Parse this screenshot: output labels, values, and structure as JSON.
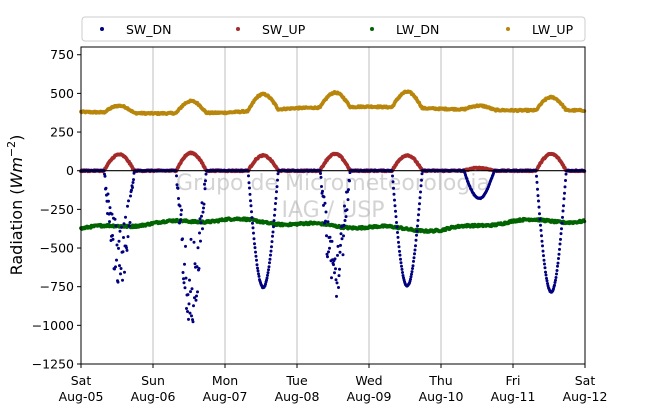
{
  "chart_data": {
    "type": "scatter",
    "title": "",
    "xlabel": "",
    "ylabel_prefix": "Radiation (",
    "ylabel_unit": "Wm",
    "ylabel_exp": "−2",
    "ylabel_suffix": ")",
    "ylim": [
      -1250,
      800
    ],
    "yticks": [
      {
        "value": 750,
        "label": "750"
      },
      {
        "value": 500,
        "label": "500"
      },
      {
        "value": 250,
        "label": "250"
      },
      {
        "value": 0,
        "label": "0"
      },
      {
        "value": -250,
        "label": "−250"
      },
      {
        "value": -500,
        "label": "−500"
      },
      {
        "value": -750,
        "label": "−750"
      },
      {
        "value": -1000,
        "label": "−1000"
      },
      {
        "value": -1250,
        "label": "−1250"
      }
    ],
    "xlim": [
      "2023-08-05",
      "2023-08-12"
    ],
    "xticks": [
      {
        "day": "Sat",
        "date": "Aug-05"
      },
      {
        "day": "Sun",
        "date": "Aug-06"
      },
      {
        "day": "Mon",
        "date": "Aug-07"
      },
      {
        "day": "Tue",
        "date": "Aug-08"
      },
      {
        "day": "Wed",
        "date": "Aug-09"
      },
      {
        "day": "Thu",
        "date": "Aug-10"
      },
      {
        "day": "Fri",
        "date": "Aug-11"
      },
      {
        "day": "Sat",
        "date": "Aug-12"
      }
    ],
    "grid": "x-only",
    "legend_position": "top",
    "watermark_lines": [
      "Grupo de Micrometeorologia",
      "IAG / USP"
    ],
    "series": [
      {
        "name": "SW_DN",
        "color": "#000080",
        "daily_min": [
          -760,
          -960,
          -755,
          -790,
          -745,
          -180,
          -785
        ]
      },
      {
        "name": "SW_UP",
        "color": "#a52a2a",
        "daily_max": [
          105,
          115,
          98,
          108,
          100,
          18,
          108
        ]
      },
      {
        "name": "LW_DN",
        "color": "#006400",
        "daily_mean": [
          -375,
          -340,
          -315,
          -345,
          -365,
          -385,
          -325
        ]
      },
      {
        "name": "LW_UP",
        "color": "#b8860b",
        "daily_max": [
          420,
          450,
          495,
          505,
          510,
          420,
          475
        ],
        "night_baseline": [
          380,
          370,
          375,
          405,
          415,
          400,
          390
        ]
      }
    ]
  }
}
